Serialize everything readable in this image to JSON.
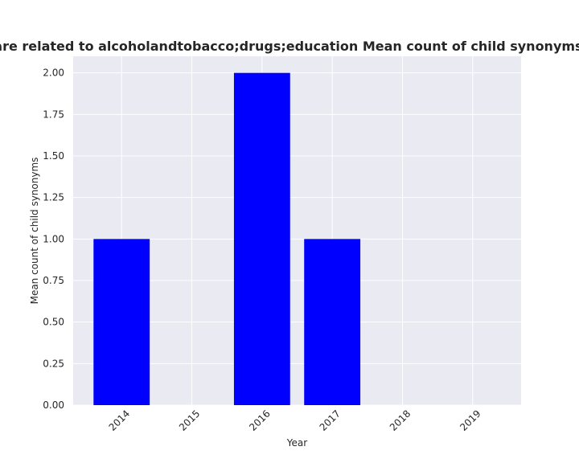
{
  "chart_data": {
    "type": "bar",
    "title": "Privacy policies are related to alcoholandtobacco;drugs;education Mean count of child synonyms in privacy policies",
    "xlabel": "Year",
    "ylabel": "Mean count of child synonyms",
    "categories": [
      "2014",
      "2015",
      "2016",
      "2017",
      "2018",
      "2019"
    ],
    "values": [
      1.0,
      0.0,
      2.0,
      1.0,
      0.0,
      0.0
    ],
    "ylim": [
      0,
      2.1
    ],
    "yticks": [
      0.0,
      0.25,
      0.5,
      0.75,
      1.0,
      1.25,
      1.5,
      1.75,
      2.0
    ],
    "ytick_labels": [
      "0.00",
      "0.25",
      "0.50",
      "0.75",
      "1.00",
      "1.25",
      "1.50",
      "1.75",
      "2.00"
    ],
    "grid": true,
    "bar_color": "#0000ff",
    "background_color": "#eaeaf2",
    "grid_color": "#ffffff"
  }
}
